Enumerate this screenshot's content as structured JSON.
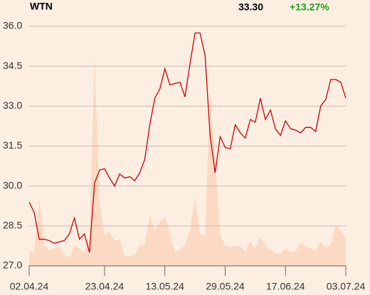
{
  "chart_data": {
    "type": "line",
    "title": "WTN",
    "last_price": "33.30",
    "change": "+13.27%",
    "change_color": "#16a316",
    "categories": [
      "02.04.24",
      null,
      null,
      null,
      null,
      null,
      null,
      null,
      null,
      null,
      null,
      null,
      null,
      null,
      null,
      "23.04.24",
      null,
      null,
      null,
      null,
      null,
      null,
      null,
      null,
      null,
      null,
      null,
      "13.05.24",
      null,
      null,
      null,
      null,
      null,
      null,
      null,
      null,
      null,
      null,
      null,
      "29.05.24",
      null,
      null,
      null,
      null,
      null,
      null,
      null,
      null,
      null,
      null,
      null,
      "17.06.24",
      null,
      null,
      null,
      null,
      null,
      null,
      null,
      null,
      null,
      null,
      null,
      "03.07.24"
    ],
    "series": [
      {
        "name": "Price",
        "color": "#c8000a",
        "values": [
          29.4,
          29.0,
          28.0,
          28.0,
          27.95,
          27.85,
          27.9,
          27.95,
          28.2,
          28.8,
          28.0,
          28.2,
          27.5,
          30.1,
          30.6,
          30.65,
          30.3,
          30.0,
          30.45,
          30.3,
          30.35,
          30.2,
          30.5,
          31.0,
          32.3,
          33.3,
          33.65,
          34.4,
          33.8,
          33.85,
          33.9,
          33.35,
          34.6,
          35.75,
          35.75,
          34.9,
          31.9,
          30.5,
          31.85,
          31.45,
          31.4,
          32.3,
          32.0,
          31.8,
          32.5,
          32.4,
          33.3,
          32.5,
          32.85,
          32.15,
          31.9,
          32.45,
          32.15,
          32.1,
          32.0,
          32.2,
          32.2,
          32.05,
          33.0,
          33.25,
          34.0,
          34.0,
          33.9,
          33.3
        ]
      },
      {
        "name": "Volume",
        "color": "#fbd9c2",
        "axis": "y2",
        "values": [
          22,
          18,
          96,
          30,
          22,
          25,
          28,
          15,
          12,
          28,
          25,
          18,
          40,
          294,
          90,
          45,
          48,
          35,
          38,
          14,
          14,
          16,
          30,
          30,
          72,
          52,
          62,
          70,
          45,
          20,
          22,
          30,
          50,
          98,
          45,
          42,
          246,
          150,
          45,
          28,
          27,
          28,
          28,
          20,
          35,
          25,
          42,
          28,
          23,
          18,
          18,
          25,
          20,
          20,
          32,
          28,
          25,
          22,
          34,
          26,
          30,
          58,
          50,
          38
        ]
      }
    ],
    "ylim": [
      27.0,
      36.0
    ],
    "yticks": [
      {
        "value": 27,
        "label": "27.0"
      },
      28.5,
      {
        "value": 30,
        "label": "30.0"
      },
      31.5,
      {
        "value": 33,
        "label": "33.0"
      },
      34.5,
      {
        "value": 36,
        "label": "36.0"
      }
    ],
    "y2lim": [
      0,
      340
    ],
    "grid": true
  }
}
